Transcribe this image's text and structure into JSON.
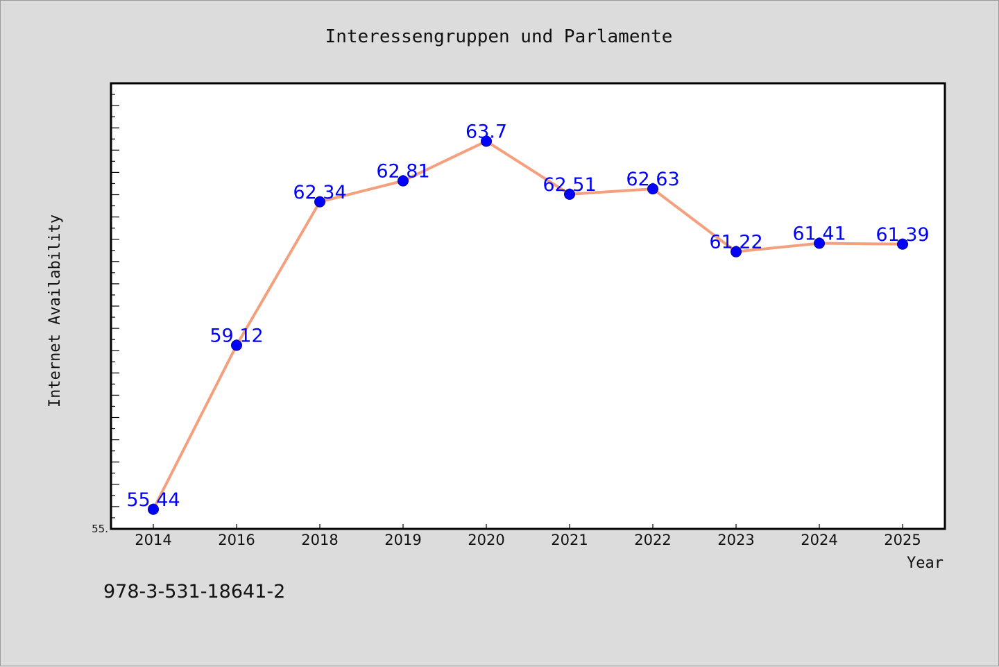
{
  "chart_data": {
    "type": "line",
    "title": "Interessengruppen und Parlamente",
    "xlabel": "Year",
    "ylabel": "Internet Availability",
    "categories": [
      "2014",
      "2016",
      "2018",
      "2019",
      "2020",
      "2021",
      "2022",
      "2023",
      "2024",
      "2025"
    ],
    "values": [
      55.44,
      59.12,
      62.34,
      62.81,
      63.7,
      62.51,
      62.63,
      61.22,
      61.41,
      61.39
    ],
    "data_labels": [
      "55.44",
      "59.12",
      "62.34",
      "62.81",
      "63.7",
      "62.51",
      "62.63",
      "61.22",
      "61.41",
      "61.39"
    ],
    "ylim": [
      55.0,
      65.0
    ],
    "y_tick_label": "55.",
    "grid": false,
    "legend": "none",
    "line_color": "#f4a07e",
    "marker_color": "#0000ff",
    "label_color": "#0000ff"
  },
  "footnote": "978-3-531-18641-2"
}
